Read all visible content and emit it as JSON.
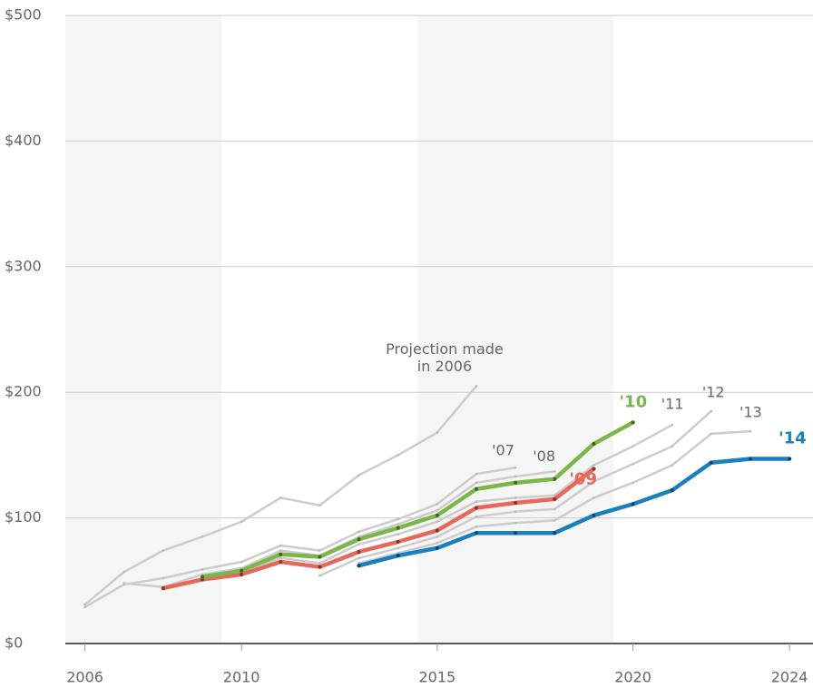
{
  "chart_data": {
    "type": "line",
    "x": [
      2006,
      2007,
      2008,
      2009,
      2010,
      2011,
      2012,
      2013,
      2014,
      2015,
      2016,
      2017,
      2018,
      2019,
      2020,
      2021,
      2022,
      2023,
      2024
    ],
    "series": [
      {
        "name": "Projection made in 2006",
        "color": "#cccccc",
        "values": [
          31,
          57,
          74,
          85,
          97,
          116,
          110,
          134,
          150,
          168,
          205,
          null,
          null,
          null,
          null,
          null,
          null,
          null,
          null
        ]
      },
      {
        "name": "'07",
        "color": "#cccccc",
        "values": [
          29,
          47,
          52,
          59,
          65,
          78,
          74,
          89,
          99,
          111,
          135,
          140,
          null,
          null,
          null,
          null,
          null,
          null,
          null
        ]
      },
      {
        "name": "'08",
        "color": "#cccccc",
        "values": [
          null,
          48,
          45,
          55,
          60,
          74,
          70,
          85,
          95,
          106,
          128,
          133,
          137,
          null,
          null,
          null,
          null,
          null,
          null
        ]
      },
      {
        "name": "'11",
        "color": "#cccccc",
        "values": [
          null,
          null,
          null,
          null,
          56,
          68,
          64,
          79,
          87,
          97,
          113,
          116,
          118,
          142,
          157,
          174,
          null,
          null,
          null
        ]
      },
      {
        "name": "'12",
        "color": "#cccccc",
        "values": [
          null,
          null,
          null,
          null,
          null,
          null,
          54,
          68,
          76,
          85,
          101,
          105,
          107,
          129,
          143,
          157,
          185,
          null,
          null
        ]
      },
      {
        "name": "'13",
        "color": "#cccccc",
        "values": [
          null,
          null,
          null,
          null,
          null,
          null,
          null,
          64,
          72,
          80,
          93,
          96,
          98,
          116,
          128,
          142,
          167,
          169,
          null
        ]
      },
      {
        "name": "'09",
        "color": "#e8675a",
        "values": [
          null,
          null,
          44,
          51,
          55,
          65,
          61,
          73,
          81,
          90,
          108,
          112,
          115,
          139,
          null,
          null,
          null,
          null,
          null
        ]
      },
      {
        "name": "'10",
        "color": "#7ab648",
        "values": [
          null,
          null,
          null,
          53,
          58,
          71,
          69,
          83,
          92,
          102,
          123,
          128,
          131,
          159,
          176,
          null,
          null,
          null,
          null
        ]
      },
      {
        "name": "'14",
        "color": "#1a7fc1",
        "values": [
          null,
          null,
          null,
          null,
          null,
          null,
          null,
          62,
          70,
          76,
          88,
          88,
          88,
          102,
          111,
          122,
          144,
          147,
          147
        ]
      }
    ],
    "xlim": [
      2005.5,
      2024.6
    ],
    "xticks": [
      2006,
      2010,
      2015,
      2020,
      2024
    ],
    "ylim": [
      0,
      500
    ],
    "yticks": [
      {
        "value": 0,
        "label": "$0"
      },
      {
        "value": 100,
        "label": "$100"
      },
      {
        "value": 200,
        "label": "$200"
      },
      {
        "value": 300,
        "label": "$300"
      },
      {
        "value": 400,
        "label": "$400"
      },
      {
        "value": 500,
        "label": "$500"
      }
    ],
    "shaded_x_ranges": [
      [
        2005.5,
        2009.5
      ],
      [
        2014.5,
        2019.5
      ]
    ],
    "grid": true
  }
}
